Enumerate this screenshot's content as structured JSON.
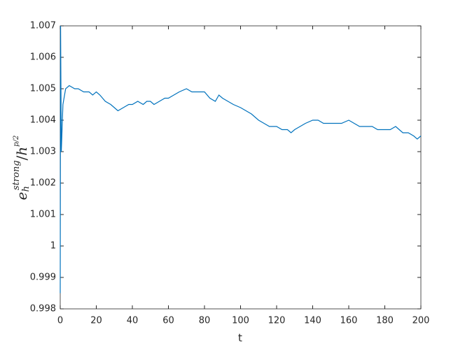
{
  "chart_data": {
    "type": "line",
    "xlabel": "t",
    "ylabel": {
      "base": "e",
      "sub": "h",
      "sup": "strong",
      "sep": "/",
      "base2": "h",
      "sup2": "p/2"
    },
    "x": [
      0,
      0.2,
      0.6,
      1.5,
      3,
      5,
      8,
      10,
      13,
      16,
      18,
      20,
      22,
      25,
      28,
      30,
      32,
      35,
      38,
      40,
      43,
      46,
      48,
      50,
      52,
      55,
      58,
      60,
      63,
      66,
      70,
      73,
      76,
      80,
      83,
      86,
      88,
      90,
      93,
      96,
      100,
      103,
      106,
      110,
      113,
      116,
      120,
      123,
      126,
      128,
      130,
      133,
      136,
      140,
      143,
      146,
      150,
      153,
      156,
      160,
      163,
      166,
      170,
      173,
      176,
      180,
      183,
      186,
      188,
      190,
      193,
      196,
      198,
      200
    ],
    "series": [
      {
        "color": "#0072bd",
        "values": [
          0.9985,
          1.007,
          1.003,
          1.0045,
          1.005,
          1.0051,
          1.005,
          1.005,
          1.0049,
          1.0049,
          1.0048,
          1.0049,
          1.0048,
          1.0046,
          1.0045,
          1.0044,
          1.0043,
          1.0044,
          1.0045,
          1.0045,
          1.0046,
          1.0045,
          1.0046,
          1.0046,
          1.0045,
          1.0046,
          1.0047,
          1.0047,
          1.0048,
          1.0049,
          1.005,
          1.0049,
          1.0049,
          1.0049,
          1.0047,
          1.0046,
          1.0048,
          1.0047,
          1.0046,
          1.0045,
          1.0044,
          1.0043,
          1.0042,
          1.004,
          1.0039,
          1.0038,
          1.0038,
          1.0037,
          1.0037,
          1.0036,
          1.0037,
          1.0038,
          1.0039,
          1.004,
          1.004,
          1.0039,
          1.0039,
          1.0039,
          1.0039,
          1.004,
          1.0039,
          1.0038,
          1.0038,
          1.0038,
          1.0037,
          1.0037,
          1.0037,
          1.0038,
          1.0037,
          1.0036,
          1.0036,
          1.0035,
          1.0034,
          1.0035
        ]
      }
    ],
    "xlim": [
      0,
      200
    ],
    "xticks": [
      0,
      20,
      40,
      60,
      80,
      100,
      120,
      140,
      160,
      180,
      200
    ],
    "ylim": [
      0.998,
      1.007
    ],
    "yticks": [
      0.998,
      0.999,
      1,
      1.001,
      1.002,
      1.003,
      1.004,
      1.005,
      1.006,
      1.007
    ]
  }
}
